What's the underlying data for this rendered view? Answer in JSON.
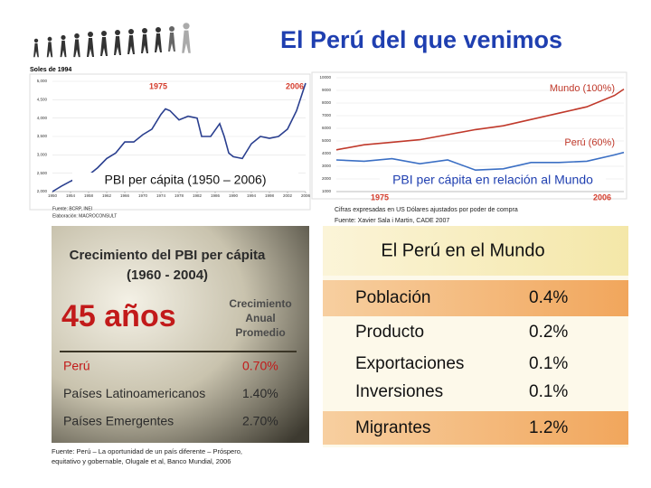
{
  "title": "El Perú del que venimos",
  "chart_data": [
    {
      "type": "line",
      "ylabel": "Soles de 1994",
      "caption": "PBI per cápita (1950 – 2006)",
      "annotations": [
        "1975",
        "2006"
      ],
      "source": [
        "Fuente: BCRP, INEI",
        "Elaboración: MACROCONSULT"
      ],
      "x": [
        1950,
        1952,
        1954,
        1956,
        1958,
        1960,
        1962,
        1964,
        1966,
        1968,
        1970,
        1972,
        1974,
        1975,
        1976,
        1978,
        1980,
        1982,
        1983,
        1985,
        1987,
        1988,
        1989,
        1990,
        1992,
        1994,
        1996,
        1998,
        2000,
        2002,
        2004,
        2006
      ],
      "series": [
        {
          "color": "#2a3f8f",
          "values": [
            2000,
            2150,
            2280,
            2400,
            2450,
            2650,
            2900,
            3050,
            3350,
            3350,
            3550,
            3700,
            4100,
            4250,
            4200,
            3950,
            4050,
            4000,
            3500,
            3500,
            3850,
            3500,
            3050,
            2950,
            2900,
            3300,
            3500,
            3450,
            3500,
            3700,
            4200,
            4950
          ]
        }
      ],
      "xlim": [
        1950,
        2006
      ],
      "xticks": [
        1950,
        1954,
        1958,
        1962,
        1966,
        1970,
        1974,
        1978,
        1982,
        1986,
        1990,
        1994,
        1998,
        2002,
        2006
      ],
      "ylim": [
        2000,
        5000
      ],
      "yticks": [
        {
          "value": 2000,
          "label": "2,000"
        },
        {
          "value": 2500,
          "label": "2,500"
        },
        {
          "value": 3000,
          "label": "3,000"
        },
        {
          "value": 3500,
          "label": "3,500"
        },
        {
          "value": 4000,
          "label": "4,000"
        },
        {
          "value": 4500,
          "label": "4,500"
        },
        {
          "value": 5000,
          "label": "5,000"
        }
      ],
      "grid": true
    },
    {
      "type": "line",
      "caption": "PBI per cápita en relación al Mundo",
      "annotations": [
        "1975",
        "2006"
      ],
      "source": [
        "Cifras expresadas en US Dólares ajustados por poder de compra",
        "Fuente: Xavier Sala i Martin, CADE 2007"
      ],
      "x": [
        1975,
        1978,
        1981,
        1984,
        1987,
        1990,
        1993,
        1996,
        1999,
        2002,
        2005,
        2006
      ],
      "series": [
        {
          "name": "Mundo (100%)",
          "color": "#c0392b",
          "values": [
            4300,
            4700,
            4900,
            5100,
            5500,
            5900,
            6200,
            6700,
            7200,
            7700,
            8600,
            9100
          ]
        },
        {
          "name": "Perú (60%)",
          "color": "#3b6fc4",
          "values": [
            3500,
            3400,
            3600,
            3200,
            3500,
            2700,
            2800,
            3300,
            3300,
            3400,
            3900,
            4100
          ]
        }
      ],
      "xlim": [
        1975,
        2006
      ],
      "ylim": [
        1000,
        10000
      ],
      "yticks": [
        1000,
        2000,
        3000,
        4000,
        5000,
        6000,
        7000,
        8000,
        9000,
        10000
      ],
      "grid": true
    }
  ],
  "growth_table": {
    "title": [
      "Crecimiento del PBI per cápita",
      "(1960 - 2004)"
    ],
    "period": "45 años",
    "column_header": [
      "Crecimiento",
      "Anual",
      "Promedio"
    ],
    "rows": [
      [
        "Perú",
        "0.70%"
      ],
      [
        "Países Latinoamericanos",
        "1.40%"
      ],
      [
        "Países Emergentes",
        "2.70%"
      ]
    ],
    "source": [
      "Fuente: Perú – La oportunidad de un país diferente – Próspero,",
      "equitativo y gobernable, Olugale et al, Banco Mundial, 2006"
    ]
  },
  "world_panel": {
    "title": "El Perú en el Mundo",
    "rows": [
      [
        "Población",
        "0.4%"
      ],
      [
        "Producto",
        "0.2%"
      ],
      [
        "Exportaciones",
        "0.1%"
      ],
      [
        "Inversiones",
        "0.1%"
      ],
      [
        "Migrantes",
        "1.2%"
      ]
    ]
  }
}
